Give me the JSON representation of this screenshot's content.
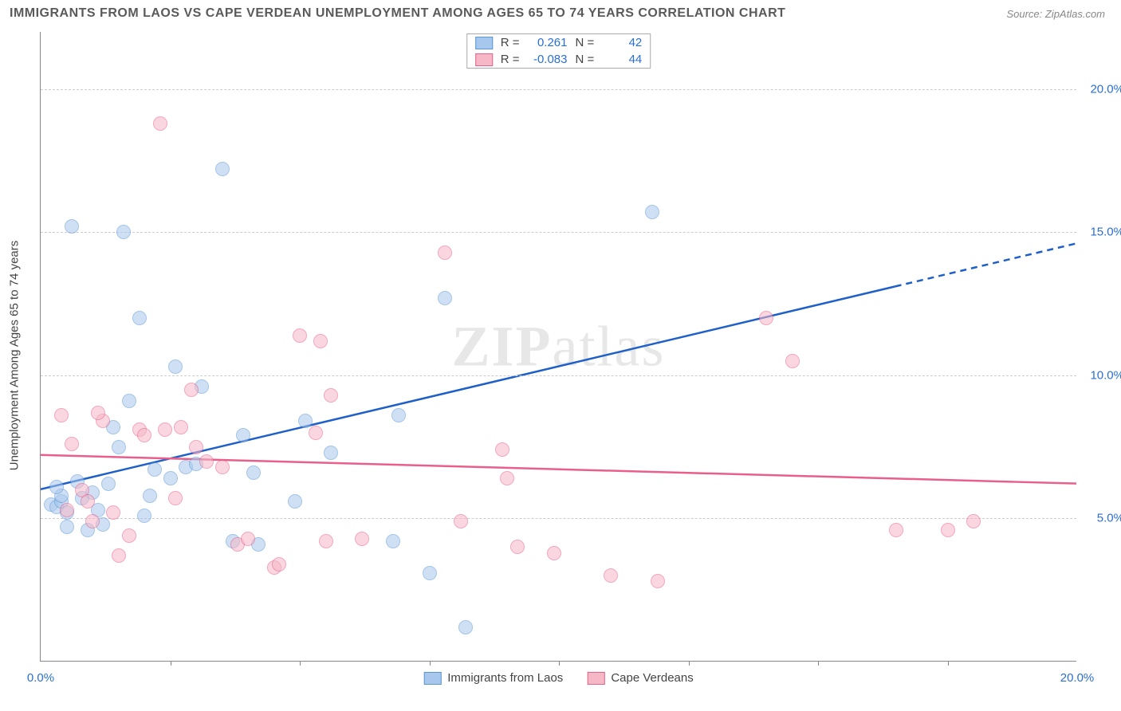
{
  "title": "IMMIGRANTS FROM LAOS VS CAPE VERDEAN UNEMPLOYMENT AMONG AGES 65 TO 74 YEARS CORRELATION CHART",
  "source": "Source: ZipAtlas.com",
  "ylabel": "Unemployment Among Ages 65 to 74 years",
  "watermark_a": "ZIP",
  "watermark_b": "atlas",
  "chart": {
    "type": "scatter",
    "xlim": [
      0,
      20
    ],
    "ylim": [
      0,
      22
    ],
    "ytick_values": [
      5,
      10,
      15,
      20
    ],
    "ytick_labels": [
      "5.0%",
      "10.0%",
      "15.0%",
      "20.0%"
    ],
    "xtick_values_bottom": [
      0,
      20
    ],
    "xtick_labels_bottom": [
      "0.0%",
      "20.0%"
    ],
    "minor_xticks": [
      2.5,
      5,
      7.5,
      10,
      12.5,
      15,
      17.5
    ],
    "grid_color": "#cccccc",
    "background_color": "#ffffff",
    "axis_color": "#888888",
    "tick_label_color": "#2b6fd4",
    "marker_radius": 9,
    "marker_opacity": 0.55
  },
  "series": [
    {
      "name": "Immigrants from Laos",
      "color_fill": "#a8c7ec",
      "color_border": "#5a96d6",
      "trend_color": "#1e5fc9",
      "trend_width": 2.5,
      "R": "0.261",
      "N": "42",
      "trend_y_at_x0": 6.0,
      "trend_y_at_x20": 14.6,
      "trend_dash_after_x": 16.5,
      "points": [
        [
          0.2,
          5.5
        ],
        [
          0.3,
          5.4
        ],
        [
          0.4,
          5.6
        ],
        [
          0.4,
          5.8
        ],
        [
          0.5,
          5.2
        ],
        [
          0.3,
          6.1
        ],
        [
          0.6,
          15.2
        ],
        [
          1.6,
          15.0
        ],
        [
          0.9,
          4.6
        ],
        [
          0.8,
          5.7
        ],
        [
          1.0,
          5.9
        ],
        [
          1.1,
          5.3
        ],
        [
          1.2,
          4.8
        ],
        [
          1.4,
          8.2
        ],
        [
          1.5,
          7.5
        ],
        [
          1.7,
          9.1
        ],
        [
          1.9,
          12.0
        ],
        [
          2.2,
          6.7
        ],
        [
          2.1,
          5.8
        ],
        [
          2.6,
          10.3
        ],
        [
          2.5,
          6.4
        ],
        [
          2.8,
          6.8
        ],
        [
          3.0,
          6.9
        ],
        [
          3.1,
          9.6
        ],
        [
          3.5,
          17.2
        ],
        [
          3.7,
          4.2
        ],
        [
          3.9,
          7.9
        ],
        [
          4.1,
          6.6
        ],
        [
          4.2,
          4.1
        ],
        [
          4.9,
          5.6
        ],
        [
          5.1,
          8.4
        ],
        [
          5.6,
          7.3
        ],
        [
          6.8,
          4.2
        ],
        [
          6.9,
          8.6
        ],
        [
          7.5,
          3.1
        ],
        [
          7.8,
          12.7
        ],
        [
          8.2,
          1.2
        ],
        [
          11.8,
          15.7
        ],
        [
          0.7,
          6.3
        ],
        [
          1.3,
          6.2
        ],
        [
          2.0,
          5.1
        ],
        [
          0.5,
          4.7
        ]
      ]
    },
    {
      "name": "Cape Verdeans",
      "color_fill": "#f6b8c7",
      "color_border": "#e85f8b",
      "trend_color": "#e85f8b",
      "trend_width": 2.5,
      "R": "-0.083",
      "N": "44",
      "trend_y_at_x0": 7.2,
      "trend_y_at_x20": 6.2,
      "trend_dash_after_x": 20,
      "points": [
        [
          0.4,
          8.6
        ],
        [
          0.5,
          5.3
        ],
        [
          0.8,
          6.0
        ],
        [
          1.0,
          4.9
        ],
        [
          1.2,
          8.4
        ],
        [
          1.4,
          5.2
        ],
        [
          1.5,
          3.7
        ],
        [
          1.7,
          4.4
        ],
        [
          1.9,
          8.1
        ],
        [
          2.0,
          7.9
        ],
        [
          2.3,
          18.8
        ],
        [
          2.4,
          8.1
        ],
        [
          2.6,
          5.7
        ],
        [
          2.7,
          8.2
        ],
        [
          2.9,
          9.5
        ],
        [
          3.0,
          7.5
        ],
        [
          3.2,
          7.0
        ],
        [
          3.8,
          4.1
        ],
        [
          4.0,
          4.3
        ],
        [
          4.5,
          3.3
        ],
        [
          4.6,
          3.4
        ],
        [
          5.0,
          11.4
        ],
        [
          5.3,
          8.0
        ],
        [
          5.4,
          11.2
        ],
        [
          5.5,
          4.2
        ],
        [
          5.6,
          9.3
        ],
        [
          6.2,
          4.3
        ],
        [
          7.8,
          14.3
        ],
        [
          8.1,
          4.9
        ],
        [
          8.9,
          7.4
        ],
        [
          9.0,
          6.4
        ],
        [
          9.2,
          4.0
        ],
        [
          9.9,
          3.8
        ],
        [
          11.0,
          3.0
        ],
        [
          11.9,
          2.8
        ],
        [
          14.0,
          12.0
        ],
        [
          14.5,
          10.5
        ],
        [
          16.5,
          4.6
        ],
        [
          17.5,
          4.6
        ],
        [
          18.0,
          4.9
        ],
        [
          0.6,
          7.6
        ],
        [
          1.1,
          8.7
        ],
        [
          0.9,
          5.6
        ],
        [
          3.5,
          6.8
        ]
      ]
    }
  ],
  "stats_legend": {
    "r_label": "R =",
    "n_label": "N ="
  },
  "bottom_legend": {
    "series1": "Immigrants from Laos",
    "series2": "Cape Verdeans"
  }
}
